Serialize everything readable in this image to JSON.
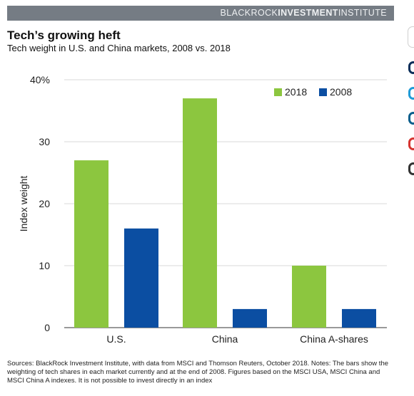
{
  "header": {
    "brand_left": "BLACKROCK",
    "brand_mid": "INVESTMENT",
    "brand_right": "INSTITUTE"
  },
  "chart_data": {
    "type": "bar",
    "title": "Tech’s growing heft",
    "subtitle": "Tech weight in U.S. and China markets, 2008 vs. 2018",
    "ylabel": "Index weight",
    "xlabel": "",
    "categories": [
      "U.S.",
      "China",
      "China A-shares"
    ],
    "series": [
      {
        "name": "2018",
        "values": [
          27,
          37,
          10
        ],
        "color": "#8cc63f"
      },
      {
        "name": "2008",
        "values": [
          16,
          3,
          3
        ],
        "color": "#0b4ea2"
      }
    ],
    "ylim": [
      0,
      40
    ],
    "yticks": [
      "0",
      "10",
      "20",
      "30",
      "40%"
    ],
    "grid": true,
    "legend_position": "top-right"
  },
  "footnote": "Sources: BlackRock Investment Institute, with data from MSCI and Thomson Reuters, October 2018. Notes: The bars show the weighting of tech shares in each market currently and at the end of 2008. Figures based on the MSCI USA, MSCI China and MSCI China A indexes. It is not possible to invest directly in an index",
  "edge_widgets": {
    "dot_colors": [
      "#0b2e59",
      "#1f9bd7",
      "#0b5f8c",
      "#d6332f",
      "#333333"
    ]
  }
}
